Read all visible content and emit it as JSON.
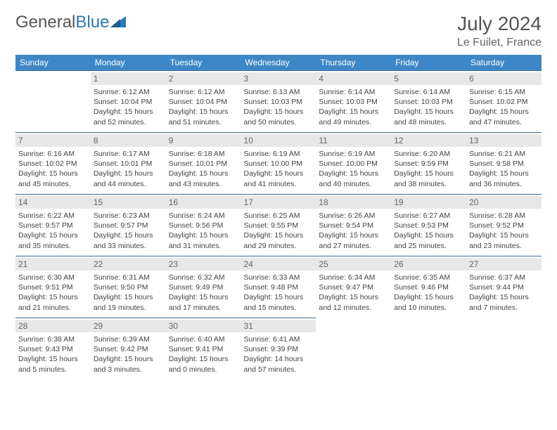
{
  "logo": {
    "text1": "General",
    "text2": "Blue"
  },
  "month_title": "July 2024",
  "location": "Le Fuilet, France",
  "colors": {
    "header_bg": "#3d87c6",
    "header_text": "#ffffff",
    "row_border": "#3d6a94",
    "daynum_bg": "#e8e8e8",
    "text": "#444444"
  },
  "weekdays": [
    "Sunday",
    "Monday",
    "Tuesday",
    "Wednesday",
    "Thursday",
    "Friday",
    "Saturday"
  ],
  "start_offset": 1,
  "days": [
    {
      "n": "1",
      "sunrise": "Sunrise: 6:12 AM",
      "sunset": "Sunset: 10:04 PM",
      "day1": "Daylight: 15 hours",
      "day2": "and 52 minutes."
    },
    {
      "n": "2",
      "sunrise": "Sunrise: 6:12 AM",
      "sunset": "Sunset: 10:04 PM",
      "day1": "Daylight: 15 hours",
      "day2": "and 51 minutes."
    },
    {
      "n": "3",
      "sunrise": "Sunrise: 6:13 AM",
      "sunset": "Sunset: 10:03 PM",
      "day1": "Daylight: 15 hours",
      "day2": "and 50 minutes."
    },
    {
      "n": "4",
      "sunrise": "Sunrise: 6:14 AM",
      "sunset": "Sunset: 10:03 PM",
      "day1": "Daylight: 15 hours",
      "day2": "and 49 minutes."
    },
    {
      "n": "5",
      "sunrise": "Sunrise: 6:14 AM",
      "sunset": "Sunset: 10:03 PM",
      "day1": "Daylight: 15 hours",
      "day2": "and 48 minutes."
    },
    {
      "n": "6",
      "sunrise": "Sunrise: 6:15 AM",
      "sunset": "Sunset: 10:02 PM",
      "day1": "Daylight: 15 hours",
      "day2": "and 47 minutes."
    },
    {
      "n": "7",
      "sunrise": "Sunrise: 6:16 AM",
      "sunset": "Sunset: 10:02 PM",
      "day1": "Daylight: 15 hours",
      "day2": "and 45 minutes."
    },
    {
      "n": "8",
      "sunrise": "Sunrise: 6:17 AM",
      "sunset": "Sunset: 10:01 PM",
      "day1": "Daylight: 15 hours",
      "day2": "and 44 minutes."
    },
    {
      "n": "9",
      "sunrise": "Sunrise: 6:18 AM",
      "sunset": "Sunset: 10:01 PM",
      "day1": "Daylight: 15 hours",
      "day2": "and 43 minutes."
    },
    {
      "n": "10",
      "sunrise": "Sunrise: 6:19 AM",
      "sunset": "Sunset: 10:00 PM",
      "day1": "Daylight: 15 hours",
      "day2": "and 41 minutes."
    },
    {
      "n": "11",
      "sunrise": "Sunrise: 6:19 AM",
      "sunset": "Sunset: 10:00 PM",
      "day1": "Daylight: 15 hours",
      "day2": "and 40 minutes."
    },
    {
      "n": "12",
      "sunrise": "Sunrise: 6:20 AM",
      "sunset": "Sunset: 9:59 PM",
      "day1": "Daylight: 15 hours",
      "day2": "and 38 minutes."
    },
    {
      "n": "13",
      "sunrise": "Sunrise: 6:21 AM",
      "sunset": "Sunset: 9:58 PM",
      "day1": "Daylight: 15 hours",
      "day2": "and 36 minutes."
    },
    {
      "n": "14",
      "sunrise": "Sunrise: 6:22 AM",
      "sunset": "Sunset: 9:57 PM",
      "day1": "Daylight: 15 hours",
      "day2": "and 35 minutes."
    },
    {
      "n": "15",
      "sunrise": "Sunrise: 6:23 AM",
      "sunset": "Sunset: 9:57 PM",
      "day1": "Daylight: 15 hours",
      "day2": "and 33 minutes."
    },
    {
      "n": "16",
      "sunrise": "Sunrise: 6:24 AM",
      "sunset": "Sunset: 9:56 PM",
      "day1": "Daylight: 15 hours",
      "day2": "and 31 minutes."
    },
    {
      "n": "17",
      "sunrise": "Sunrise: 6:25 AM",
      "sunset": "Sunset: 9:55 PM",
      "day1": "Daylight: 15 hours",
      "day2": "and 29 minutes."
    },
    {
      "n": "18",
      "sunrise": "Sunrise: 6:26 AM",
      "sunset": "Sunset: 9:54 PM",
      "day1": "Daylight: 15 hours",
      "day2": "and 27 minutes."
    },
    {
      "n": "19",
      "sunrise": "Sunrise: 6:27 AM",
      "sunset": "Sunset: 9:53 PM",
      "day1": "Daylight: 15 hours",
      "day2": "and 25 minutes."
    },
    {
      "n": "20",
      "sunrise": "Sunrise: 6:28 AM",
      "sunset": "Sunset: 9:52 PM",
      "day1": "Daylight: 15 hours",
      "day2": "and 23 minutes."
    },
    {
      "n": "21",
      "sunrise": "Sunrise: 6:30 AM",
      "sunset": "Sunset: 9:51 PM",
      "day1": "Daylight: 15 hours",
      "day2": "and 21 minutes."
    },
    {
      "n": "22",
      "sunrise": "Sunrise: 6:31 AM",
      "sunset": "Sunset: 9:50 PM",
      "day1": "Daylight: 15 hours",
      "day2": "and 19 minutes."
    },
    {
      "n": "23",
      "sunrise": "Sunrise: 6:32 AM",
      "sunset": "Sunset: 9:49 PM",
      "day1": "Daylight: 15 hours",
      "day2": "and 17 minutes."
    },
    {
      "n": "24",
      "sunrise": "Sunrise: 6:33 AM",
      "sunset": "Sunset: 9:48 PM",
      "day1": "Daylight: 15 hours",
      "day2": "and 15 minutes."
    },
    {
      "n": "25",
      "sunrise": "Sunrise: 6:34 AM",
      "sunset": "Sunset: 9:47 PM",
      "day1": "Daylight: 15 hours",
      "day2": "and 12 minutes."
    },
    {
      "n": "26",
      "sunrise": "Sunrise: 6:35 AM",
      "sunset": "Sunset: 9:46 PM",
      "day1": "Daylight: 15 hours",
      "day2": "and 10 minutes."
    },
    {
      "n": "27",
      "sunrise": "Sunrise: 6:37 AM",
      "sunset": "Sunset: 9:44 PM",
      "day1": "Daylight: 15 hours",
      "day2": "and 7 minutes."
    },
    {
      "n": "28",
      "sunrise": "Sunrise: 6:38 AM",
      "sunset": "Sunset: 9:43 PM",
      "day1": "Daylight: 15 hours",
      "day2": "and 5 minutes."
    },
    {
      "n": "29",
      "sunrise": "Sunrise: 6:39 AM",
      "sunset": "Sunset: 9:42 PM",
      "day1": "Daylight: 15 hours",
      "day2": "and 3 minutes."
    },
    {
      "n": "30",
      "sunrise": "Sunrise: 6:40 AM",
      "sunset": "Sunset: 9:41 PM",
      "day1": "Daylight: 15 hours",
      "day2": "and 0 minutes."
    },
    {
      "n": "31",
      "sunrise": "Sunrise: 6:41 AM",
      "sunset": "Sunset: 9:39 PM",
      "day1": "Daylight: 14 hours",
      "day2": "and 57 minutes."
    }
  ]
}
